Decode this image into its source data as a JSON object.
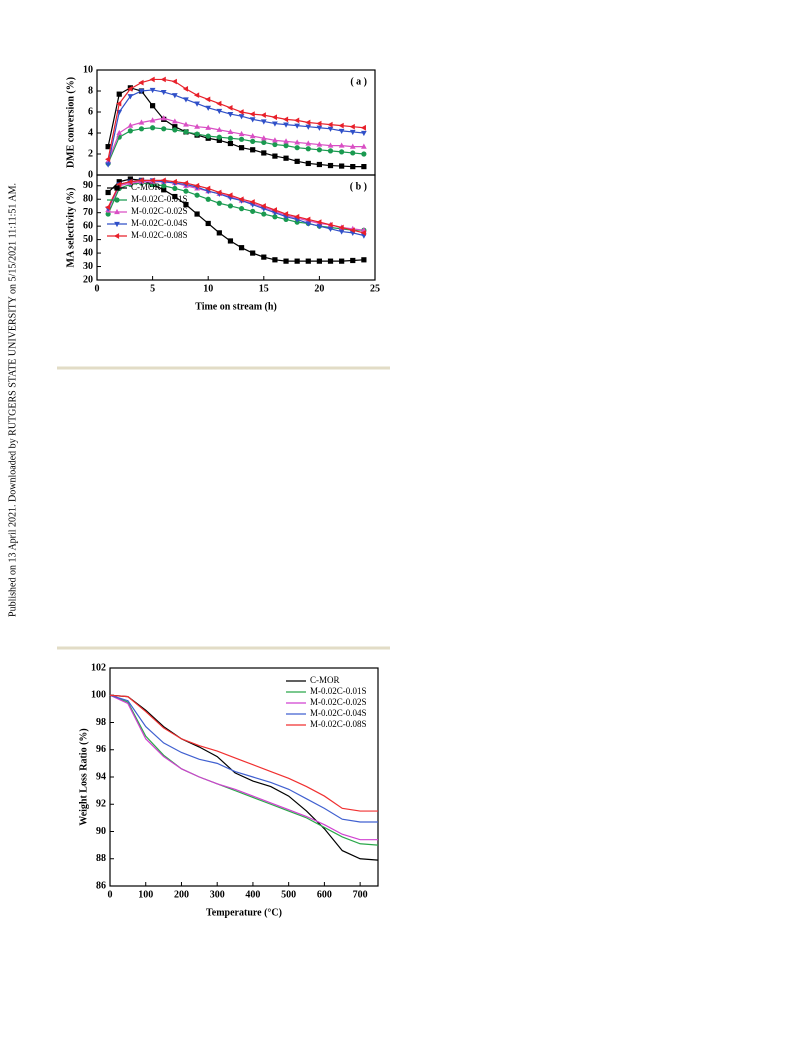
{
  "side_note": "Published on 13 April 2021. Downloaded by RUTGERS STATE UNIVERSITY on 5/15/2021 11:11:51 AM.",
  "chart_data": [
    {
      "type": "line",
      "panel_label": "( a )",
      "ylabel": "DME conversion (%)",
      "x": [
        1,
        2,
        3,
        4,
        5,
        6,
        7,
        8,
        9,
        10,
        11,
        12,
        13,
        14,
        15,
        16,
        17,
        18,
        19,
        20,
        21,
        22,
        23,
        24
      ],
      "xlim": [
        0,
        25
      ],
      "ylim": [
        0,
        10
      ],
      "yticks": [
        0,
        2,
        4,
        6,
        8,
        10
      ],
      "series": [
        {
          "color": "#000000",
          "marker": "square",
          "values": [
            2.7,
            7.7,
            8.3,
            8.0,
            6.6,
            5.3,
            4.6,
            4.1,
            3.8,
            3.5,
            3.3,
            3.0,
            2.6,
            2.4,
            2.1,
            1.8,
            1.6,
            1.3,
            1.1,
            1.0,
            0.9,
            0.85,
            0.8,
            0.8
          ]
        },
        {
          "color": "#1a9a50",
          "marker": "circle",
          "values": [
            1.1,
            3.6,
            4.2,
            4.4,
            4.5,
            4.4,
            4.3,
            4.1,
            3.9,
            3.7,
            3.6,
            3.5,
            3.4,
            3.2,
            3.1,
            2.9,
            2.8,
            2.6,
            2.5,
            2.4,
            2.3,
            2.2,
            2.1,
            2.0
          ]
        },
        {
          "color": "#d94fc4",
          "marker": "triangle-up",
          "values": [
            1.3,
            4.0,
            4.7,
            5.0,
            5.2,
            5.4,
            5.1,
            4.8,
            4.6,
            4.5,
            4.3,
            4.1,
            3.9,
            3.7,
            3.5,
            3.3,
            3.2,
            3.1,
            3.0,
            2.9,
            2.8,
            2.8,
            2.7,
            2.7
          ]
        },
        {
          "color": "#3050c8",
          "marker": "triangle-down",
          "values": [
            1.0,
            6.0,
            7.5,
            8.0,
            8.1,
            7.9,
            7.6,
            7.2,
            6.8,
            6.4,
            6.1,
            5.8,
            5.6,
            5.3,
            5.1,
            4.9,
            4.8,
            4.7,
            4.6,
            4.5,
            4.4,
            4.2,
            4.1,
            4.0
          ]
        },
        {
          "color": "#e8202a",
          "marker": "triangle-left",
          "values": [
            1.5,
            6.8,
            8.2,
            8.8,
            9.1,
            9.1,
            8.9,
            8.2,
            7.6,
            7.2,
            6.8,
            6.4,
            6.0,
            5.8,
            5.7,
            5.5,
            5.3,
            5.2,
            5.0,
            4.9,
            4.8,
            4.7,
            4.6,
            4.5
          ]
        }
      ]
    },
    {
      "type": "line",
      "panel_label": "( b )",
      "ylabel": "MA selectivity (%)",
      "xlabel": "Time on stream (h)",
      "x": [
        1,
        2,
        3,
        4,
        5,
        6,
        7,
        8,
        9,
        10,
        11,
        12,
        13,
        14,
        15,
        16,
        17,
        18,
        19,
        20,
        21,
        22,
        23,
        24
      ],
      "xlim": [
        0,
        25
      ],
      "xticks": [
        0,
        5,
        10,
        15,
        20,
        25
      ],
      "ylim": [
        20,
        98
      ],
      "yticks": [
        20,
        30,
        40,
        50,
        60,
        70,
        80,
        90
      ],
      "legend": "upper left",
      "series": [
        {
          "name": "C-MOR",
          "color": "#000000",
          "marker": "square",
          "values": [
            85,
            93,
            95,
            94,
            91,
            87,
            82,
            76,
            69,
            62,
            55,
            49,
            44,
            40,
            37,
            35,
            34,
            34,
            34,
            34,
            34,
            34,
            34.5,
            35
          ]
        },
        {
          "name": "M-0.02C-0.01S",
          "color": "#1a9a50",
          "marker": "circle",
          "values": [
            69,
            88,
            91,
            92,
            91,
            90,
            88,
            86,
            83,
            80,
            77,
            75,
            73,
            71,
            69,
            67,
            65,
            63,
            62,
            60,
            59,
            58,
            57,
            57
          ]
        },
        {
          "name": "M-0.02C-0.02S",
          "color": "#d94fc4",
          "marker": "triangle-up",
          "values": [
            72,
            90,
            92,
            93,
            93,
            93,
            92,
            90,
            88,
            86,
            84,
            82,
            79,
            77,
            74,
            71,
            68,
            66,
            64,
            62,
            61,
            59,
            58,
            57
          ]
        },
        {
          "name": "M-0.02C-0.04S",
          "color": "#3050c8",
          "marker": "triangle-down",
          "values": [
            73,
            91,
            93,
            94,
            94,
            93,
            92,
            91,
            89,
            86,
            84,
            81,
            79,
            76,
            73,
            70,
            67,
            65,
            62,
            60,
            58,
            56,
            55,
            53
          ]
        },
        {
          "name": "M-0.02C-0.08S",
          "color": "#e8202a",
          "marker": "triangle-left",
          "values": [
            74,
            91,
            93,
            94,
            94,
            94,
            93,
            92,
            90,
            88,
            85,
            83,
            80,
            78,
            75,
            72,
            69,
            67,
            65,
            63,
            61,
            59,
            57,
            55
          ]
        }
      ]
    },
    {
      "type": "line",
      "ylabel": "Weight Loss Ratio (%)",
      "xlabel": "Temperature (°C)",
      "x": [
        0,
        50,
        100,
        150,
        200,
        250,
        300,
        350,
        400,
        450,
        500,
        550,
        600,
        650,
        700,
        750
      ],
      "xlim": [
        0,
        750
      ],
      "xticks": [
        0,
        100,
        200,
        300,
        400,
        500,
        600,
        700
      ],
      "ylim": [
        86,
        102
      ],
      "yticks": [
        86,
        88,
        90,
        92,
        94,
        96,
        98,
        100,
        102
      ],
      "legend": "upper right",
      "series": [
        {
          "name": "C-MOR",
          "color": "#000000",
          "values": [
            100,
            99.9,
            98.9,
            97.7,
            96.8,
            96.2,
            95.5,
            94.3,
            93.7,
            93.3,
            92.6,
            91.5,
            90.2,
            88.6,
            88.0,
            87.9
          ]
        },
        {
          "name": "M-0.02C-0.01S",
          "color": "#2aa84a",
          "values": [
            100,
            99.5,
            97.0,
            95.6,
            94.6,
            94.0,
            93.5,
            93.0,
            92.5,
            92.0,
            91.5,
            91.0,
            90.3,
            89.6,
            89.1,
            89.0
          ]
        },
        {
          "name": "M-0.02C-0.02S",
          "color": "#d040d0",
          "values": [
            100,
            99.4,
            96.8,
            95.5,
            94.6,
            94.0,
            93.5,
            93.1,
            92.6,
            92.1,
            91.6,
            91.1,
            90.5,
            89.8,
            89.4,
            89.4
          ]
        },
        {
          "name": "M-0.02C-0.04S",
          "color": "#4060d0",
          "values": [
            100,
            99.6,
            97.7,
            96.5,
            95.8,
            95.3,
            95.0,
            94.4,
            94.0,
            93.6,
            93.1,
            92.4,
            91.7,
            90.9,
            90.7,
            90.7
          ]
        },
        {
          "name": "M-0.02C-0.08S",
          "color": "#f03030",
          "values": [
            100,
            99.9,
            98.8,
            97.6,
            96.8,
            96.3,
            95.9,
            95.4,
            94.9,
            94.4,
            93.9,
            93.3,
            92.6,
            91.7,
            91.5,
            91.5
          ]
        }
      ]
    }
  ]
}
